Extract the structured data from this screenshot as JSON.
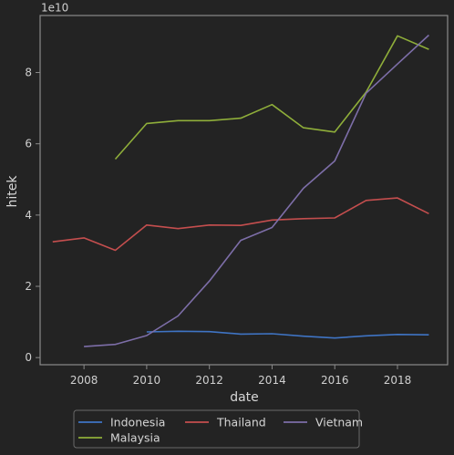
{
  "chart_data": {
    "type": "line",
    "xlabel": "date",
    "ylabel": "hitek",
    "y_offset_label": "1e10",
    "xlim": [
      2006.6,
      2019.6
    ],
    "ylim": [
      -0.2,
      9.6
    ],
    "y_unit_multiplier": 10000000000,
    "x_ticks": [
      2008,
      2010,
      2012,
      2014,
      2016,
      2018
    ],
    "x_tick_labels": [
      "2008",
      "2010",
      "2012",
      "2014",
      "2016",
      "2018"
    ],
    "y_ticks": [
      0,
      2,
      4,
      6,
      8
    ],
    "y_tick_labels": [
      "0",
      "2",
      "4",
      "6",
      "8"
    ],
    "grid": false,
    "legend_position": "bottom-center",
    "series": [
      {
        "name": "Indonesia",
        "color": "#3f74c4",
        "x": [
          2010,
          2011,
          2012,
          2013,
          2014,
          2015,
          2016,
          2017,
          2018,
          2019
        ],
        "y": [
          0.72,
          0.74,
          0.73,
          0.66,
          0.67,
          0.6,
          0.55,
          0.61,
          0.65,
          0.64
        ]
      },
      {
        "name": "Malaysia",
        "color": "#8fae3a",
        "x": [
          2009,
          2010,
          2011,
          2012,
          2013,
          2014,
          2015,
          2016,
          2017,
          2018,
          2019
        ],
        "y": [
          5.57,
          6.57,
          6.65,
          6.65,
          6.72,
          7.1,
          6.45,
          6.33,
          7.45,
          9.03,
          8.65
        ]
      },
      {
        "name": "Thailand",
        "color": "#c44e4e",
        "x": [
          2007,
          2008,
          2009,
          2010,
          2011,
          2012,
          2013,
          2014,
          2015,
          2016,
          2017,
          2018,
          2019
        ],
        "y": [
          3.25,
          3.36,
          3.01,
          3.72,
          3.62,
          3.72,
          3.71,
          3.86,
          3.9,
          3.92,
          4.41,
          4.48,
          4.04
        ]
      },
      {
        "name": "Vietnam",
        "color": "#7d6ea8",
        "x": [
          2008,
          2009,
          2010,
          2011,
          2012,
          2013,
          2014,
          2015,
          2016,
          2017,
          2018,
          2019
        ],
        "y": [
          0.31,
          0.37,
          0.62,
          1.17,
          2.15,
          3.29,
          3.65,
          4.75,
          5.52,
          7.42,
          8.24,
          9.05
        ]
      }
    ],
    "legend_order": [
      "Indonesia",
      "Thailand",
      "Vietnam",
      "Malaysia"
    ]
  },
  "colors": {
    "background": "#232323",
    "axes_face": "#232323",
    "spine": "#8a8a8a",
    "tick_text": "#cfcfcf",
    "legend_border": "#6a6a6a"
  }
}
